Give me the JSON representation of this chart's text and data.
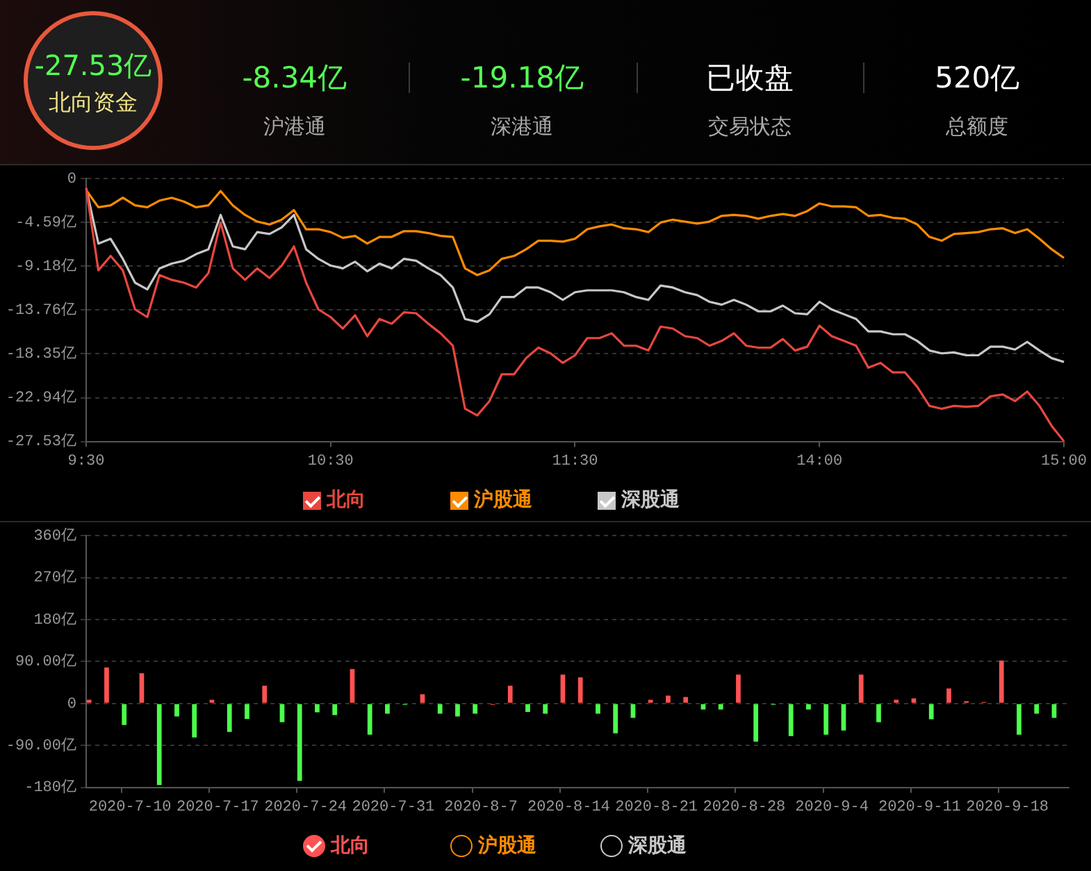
{
  "chart_data": [
    {
      "type": "other",
      "categories": [
        "北向资金",
        "沪港通",
        "深港通",
        "交易状态",
        "总额度"
      ],
      "values": [
        -27.53,
        -8.34,
        -19.18,
        null,
        520
      ],
      "value_labels": [
        "-27.53亿",
        "-8.34亿",
        "-19.18亿",
        "已收盘",
        "520亿"
      ]
    },
    {
      "type": "line",
      "categories": [
        "9:30",
        null,
        null,
        null,
        null,
        null,
        null,
        null,
        null,
        null,
        null,
        null,
        null,
        null,
        null,
        null,
        null,
        null,
        null,
        null,
        "10:30",
        null,
        null,
        null,
        null,
        null,
        null,
        null,
        null,
        null,
        null,
        null,
        null,
        null,
        null,
        null,
        null,
        null,
        null,
        null,
        "11:30",
        null,
        null,
        null,
        null,
        null,
        null,
        null,
        null,
        null,
        null,
        null,
        null,
        null,
        null,
        null,
        null,
        null,
        null,
        null,
        "14:00",
        null,
        null,
        null,
        null,
        null,
        null,
        null,
        null,
        null,
        null,
        null,
        null,
        null,
        null,
        null,
        null,
        null,
        null,
        null,
        "15:00"
      ],
      "ylim": [
        -27.53,
        0
      ],
      "yticks": [
        0,
        {
          "value": -4.59,
          "label": "-4.59亿"
        },
        {
          "value": -9.18,
          "label": "-9.18亿"
        },
        {
          "value": -13.76,
          "label": "-13.76亿"
        },
        {
          "value": -18.35,
          "label": "-18.35亿"
        },
        {
          "value": -22.94,
          "label": "-22.94亿"
        },
        {
          "value": -27.53,
          "label": "-27.53亿"
        }
      ],
      "grid": "y",
      "legend": "bottom",
      "marker": "none",
      "line_style": "solid",
      "series": [
        {
          "name": "北向",
          "color": "#e8473f",
          "values": [
            -1.0,
            -9.6,
            -8.1,
            -9.6,
            -13.7,
            -14.5,
            -10.1,
            -10.6,
            -10.9,
            -11.4,
            -9.9,
            -4.6,
            -9.4,
            -10.6,
            -9.4,
            -10.4,
            -9.1,
            -7.1,
            -10.9,
            -13.7,
            -14.5,
            -15.7,
            -14.3,
            -16.5,
            -14.7,
            -15.2,
            -14.0,
            -14.1,
            -15.2,
            -16.2,
            -17.5,
            -24.1,
            -24.8,
            -23.3,
            -20.5,
            -20.5,
            -18.8,
            -17.7,
            -18.3,
            -19.3,
            -18.5,
            -16.7,
            -16.7,
            -16.2,
            -17.5,
            -17.5,
            -18.0,
            -15.5,
            -15.7,
            -16.5,
            -16.7,
            -17.5,
            -17.0,
            -16.2,
            -17.5,
            -17.7,
            -17.7,
            -16.8,
            -18.0,
            -17.6,
            -15.4,
            -16.5,
            -17.0,
            -17.5,
            -19.8,
            -19.3,
            -20.3,
            -20.3,
            -21.8,
            -23.8,
            -24.1,
            -23.8,
            -23.9,
            -23.8,
            -22.8,
            -22.6,
            -23.3,
            -22.3,
            -23.8,
            -25.9,
            -27.5
          ]
        },
        {
          "name": "沪股通",
          "color": "#ff8c00",
          "values": [
            -1.2,
            -3.0,
            -2.8,
            -2.0,
            -2.8,
            -3.0,
            -2.3,
            -2.0,
            -2.4,
            -3.0,
            -2.8,
            -1.3,
            -2.8,
            -3.8,
            -4.5,
            -4.8,
            -4.3,
            -3.3,
            -5.3,
            -5.3,
            -5.6,
            -6.2,
            -6.0,
            -6.8,
            -6.1,
            -6.1,
            -5.5,
            -5.5,
            -5.7,
            -6.0,
            -6.1,
            -9.4,
            -10.1,
            -9.6,
            -8.4,
            -8.1,
            -7.4,
            -6.5,
            -6.5,
            -6.6,
            -6.3,
            -5.3,
            -5.0,
            -4.8,
            -5.2,
            -5.3,
            -5.6,
            -4.6,
            -4.3,
            -4.5,
            -4.7,
            -4.5,
            -3.9,
            -3.8,
            -3.9,
            -4.2,
            -3.9,
            -3.7,
            -3.9,
            -3.4,
            -2.6,
            -2.9,
            -2.9,
            -3.0,
            -3.9,
            -3.8,
            -4.1,
            -4.2,
            -4.8,
            -6.1,
            -6.5,
            -5.8,
            -5.7,
            -5.6,
            -5.3,
            -5.2,
            -5.7,
            -5.3,
            -6.3,
            -7.4,
            -8.3
          ]
        },
        {
          "name": "深股通",
          "color": "#c8c8c8",
          "values": [
            -1.0,
            -6.8,
            -6.3,
            -8.4,
            -10.9,
            -11.6,
            -9.4,
            -8.9,
            -8.6,
            -7.9,
            -7.4,
            -3.8,
            -7.1,
            -7.4,
            -5.6,
            -5.8,
            -5.1,
            -3.8,
            -7.4,
            -8.4,
            -9.1,
            -9.4,
            -8.7,
            -9.7,
            -8.9,
            -9.4,
            -8.4,
            -8.6,
            -9.4,
            -10.1,
            -11.4,
            -14.7,
            -15.0,
            -14.2,
            -12.4,
            -12.4,
            -11.4,
            -11.4,
            -11.9,
            -12.7,
            -11.9,
            -11.7,
            -11.7,
            -11.7,
            -11.9,
            -12.4,
            -12.7,
            -11.2,
            -11.4,
            -11.9,
            -12.2,
            -12.9,
            -13.2,
            -12.7,
            -13.2,
            -13.9,
            -13.9,
            -13.3,
            -14.1,
            -14.2,
            -12.9,
            -13.7,
            -14.2,
            -14.7,
            -16.0,
            -16.0,
            -16.3,
            -16.3,
            -17.0,
            -18.0,
            -18.3,
            -18.2,
            -18.5,
            -18.5,
            -17.6,
            -17.6,
            -17.9,
            -17.1,
            -18.0,
            -18.8,
            -19.2
          ]
        }
      ]
    },
    {
      "type": "bar",
      "categories": [
        null,
        null,
        "2020-7-10",
        null,
        null,
        null,
        null,
        "2020-7-17",
        null,
        null,
        null,
        null,
        "2020-7-24",
        null,
        null,
        null,
        null,
        "2020-7-31",
        null,
        null,
        null,
        null,
        "2020-8-7",
        null,
        null,
        null,
        null,
        "2020-8-14",
        null,
        null,
        null,
        null,
        "2020-8-21",
        null,
        null,
        null,
        null,
        "2020-8-28",
        null,
        null,
        null,
        null,
        "2020-9-4",
        null,
        null,
        null,
        null,
        "2020-9-11",
        null,
        null,
        null,
        null,
        "2020-9-18",
        null,
        null,
        null
      ],
      "ylim": [
        -180,
        360
      ],
      "yticks": [
        {
          "value": 360,
          "label": "360亿"
        },
        {
          "value": 270,
          "label": "270亿"
        },
        {
          "value": 180,
          "label": "180亿"
        },
        {
          "value": 90,
          "label": "90.00亿"
        },
        0,
        {
          "value": -90,
          "label": "-90.00亿"
        },
        {
          "value": -180,
          "label": "-180亿"
        }
      ],
      "grid": "y",
      "legend": "bottom",
      "series": [
        {
          "name": "北向",
          "color": "#ff5252",
          "colors": [
            "#ff5252",
            "#ff5252",
            "#4cff4c",
            "#ff5252",
            "#4cff4c",
            "#4cff4c",
            "#4cff4c",
            "#ff5252",
            "#4cff4c",
            "#4cff4c",
            "#ff5252",
            "#4cff4c",
            "#4cff4c",
            "#4cff4c",
            "#4cff4c",
            "#ff5252",
            "#4cff4c",
            "#4cff4c",
            "#4cff4c",
            "#ff5252",
            "#4cff4c",
            "#4cff4c",
            "#4cff4c",
            "#ff5252",
            "#ff5252",
            "#4cff4c",
            "#4cff4c",
            "#ff5252",
            "#ff5252",
            "#4cff4c",
            "#4cff4c",
            "#4cff4c",
            "#ff5252",
            "#ff5252",
            "#ff5252",
            "#4cff4c",
            "#4cff4c",
            "#ff5252",
            "#4cff4c",
            "#4cff4c",
            "#4cff4c",
            "#4cff4c",
            "#4cff4c",
            "#4cff4c",
            "#ff5252",
            "#4cff4c",
            "#ff5252",
            "#ff5252",
            "#4cff4c",
            "#ff5252",
            "#ff5252",
            "#ff5252",
            "#ff5252",
            "#4cff4c",
            "#4cff4c",
            "#4cff4c"
          ],
          "values": [
            8,
            77,
            -46,
            65,
            -175,
            -28,
            -73,
            8,
            -61,
            -33,
            38,
            -40,
            -166,
            -19,
            -25,
            74,
            -67,
            -22,
            -3,
            20,
            -22,
            -28,
            -22,
            -3,
            38,
            -18,
            -22,
            62,
            56,
            -22,
            -64,
            -31,
            8,
            17,
            14,
            -13,
            -13,
            62,
            -82,
            -3,
            -70,
            -13,
            -67,
            -58,
            62,
            -40,
            8,
            11,
            -34,
            32,
            5,
            3,
            92,
            -67,
            -22,
            -31
          ]
        },
        {
          "name": "沪股通",
          "color": "#ff8c00",
          "values": [
            null,
            null,
            null,
            null,
            null,
            null,
            null,
            null,
            null,
            null,
            null,
            null,
            null,
            null,
            null,
            null,
            null,
            null,
            null,
            null,
            null,
            null,
            null,
            null,
            null,
            null,
            null,
            null,
            null,
            null,
            null,
            null,
            null,
            null,
            null,
            null,
            null,
            null,
            null,
            null,
            null,
            null,
            null,
            null,
            null,
            null,
            null,
            null,
            null,
            null,
            null,
            null,
            null,
            null,
            null,
            null
          ]
        },
        {
          "name": "深股通",
          "color": "#c8c8c8",
          "values": [
            null,
            null,
            null,
            null,
            null,
            null,
            null,
            null,
            null,
            null,
            null,
            null,
            null,
            null,
            null,
            null,
            null,
            null,
            null,
            null,
            null,
            null,
            null,
            null,
            null,
            null,
            null,
            null,
            null,
            null,
            null,
            null,
            null,
            null,
            null,
            null,
            null,
            null,
            null,
            null,
            null,
            null,
            null,
            null,
            null,
            null,
            null,
            null,
            null,
            null,
            null,
            null,
            null,
            null,
            null,
            null
          ]
        }
      ]
    }
  ]
}
